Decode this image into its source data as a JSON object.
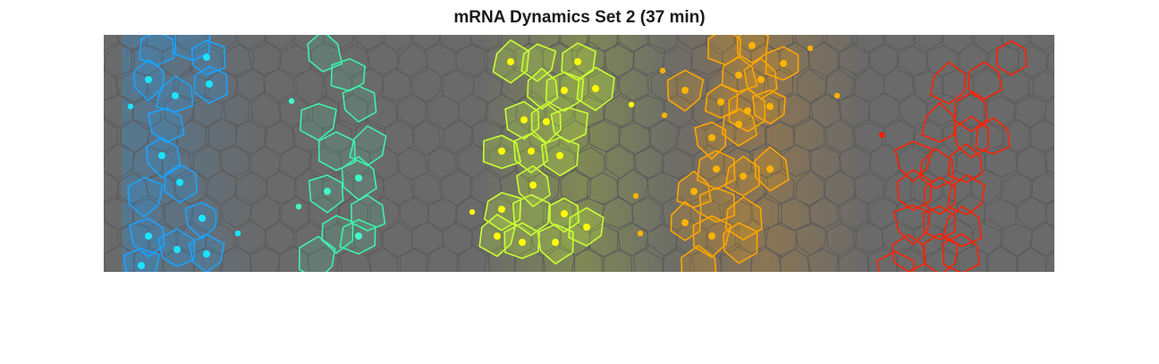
{
  "figure": {
    "title": "mRNA Dynamics Set 2 (37 min)"
  },
  "colors": {
    "background": "#6a6a6a",
    "cell_edge": "#5c5c5c",
    "blue": "#1aa3ff",
    "blue_dot": "#19e6ff",
    "teal": "#3ff0b0",
    "teal_dot": "#3fffc8",
    "lime": "#c8ff33",
    "lime_dot": "#ffff00",
    "orange": "#ffa500",
    "orange_dot": "#ffb300",
    "red": "#ff2200",
    "red_dot": "#ff1a00"
  }
}
